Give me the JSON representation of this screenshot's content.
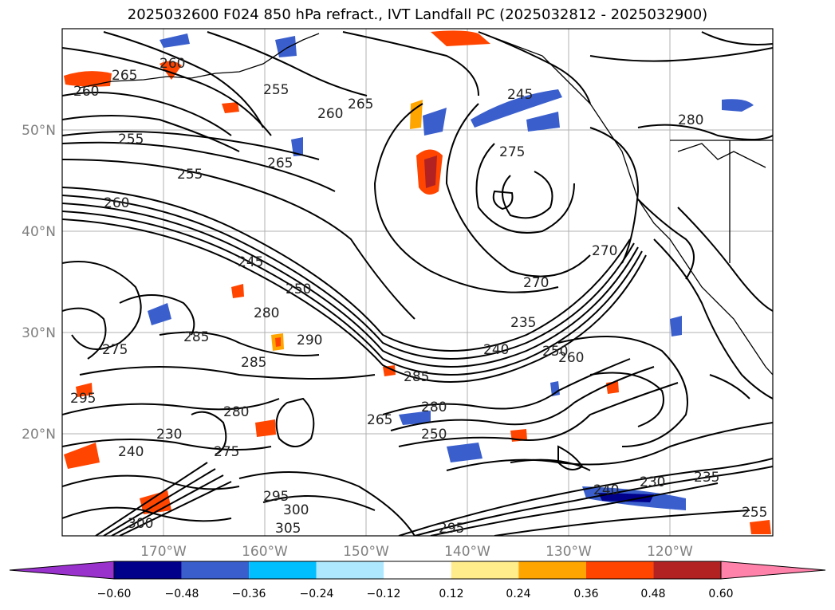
{
  "title": "2025032600 F024 850 hPa refract., IVT Landfall PC (2025032812 - 2025032900)",
  "lat_labels": [
    "50°N",
    "40°N",
    "30°N",
    "20°N"
  ],
  "lon_labels": [
    "170°W",
    "160°W",
    "150°W",
    "140°W",
    "130°W",
    "120°W"
  ],
  "contour_labels": [
    "265",
    "260",
    "260",
    "255",
    "265",
    "260",
    "255",
    "265",
    "255",
    "260",
    "245",
    "275",
    "280",
    "245",
    "250",
    "270",
    "280",
    "285",
    "290",
    "235",
    "240",
    "270",
    "260",
    "285",
    "275",
    "285",
    "280",
    "295",
    "265",
    "230",
    "240",
    "230",
    "235",
    "255",
    "295",
    "305",
    "300",
    "295",
    "275",
    "240",
    "250",
    "280",
    "250",
    "300"
  ],
  "colorbar": {
    "ticks": [
      "−0.60",
      "−0.48",
      "−0.36",
      "−0.24",
      "−0.12",
      "0.12",
      "0.24",
      "0.36",
      "0.48",
      "0.60"
    ],
    "colors": [
      "#9932cc",
      "#00008b",
      "#3a5fcd",
      "#00bfff",
      "#ade8fe",
      "#ffffff",
      "#ffec8b",
      "#ffa500",
      "#ff4500",
      "#b22222",
      "#ff82ab"
    ]
  }
}
